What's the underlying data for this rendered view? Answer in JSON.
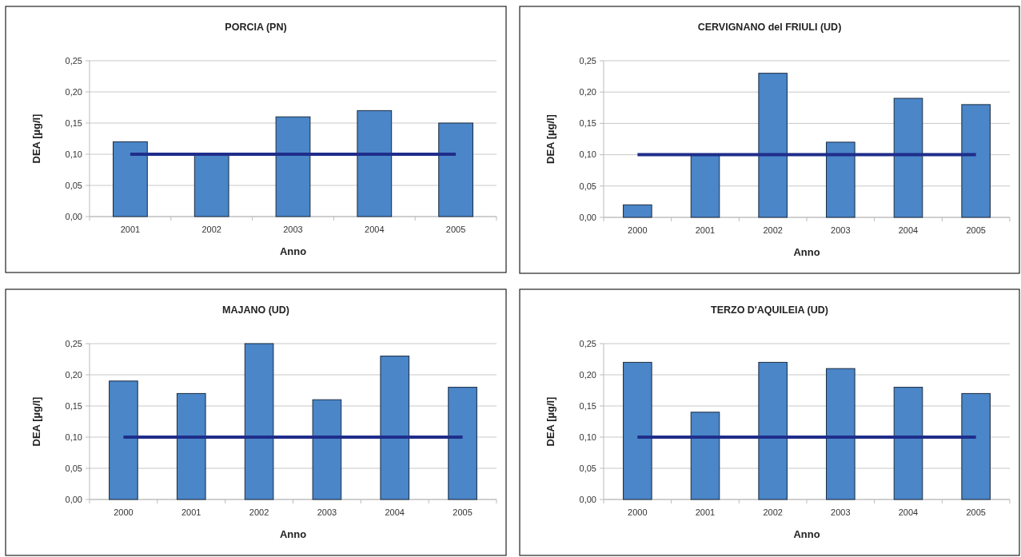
{
  "chart_data": [
    {
      "type": "bar",
      "title": "PORCIA (PN)",
      "xlabel": "Anno",
      "ylabel": "DEA [µg/l]",
      "categories": [
        "2001",
        "2002",
        "2003",
        "2004",
        "2005"
      ],
      "series": [
        {
          "color": "#4a86c8",
          "values": [
            0.12,
            0.1,
            0.16,
            0.17,
            0.15
          ]
        },
        {
          "type": "line",
          "color": "#1f2d8a",
          "values": [
            0.1,
            0.1,
            0.1,
            0.1,
            0.1
          ]
        }
      ],
      "ylim": [
        0,
        0.25
      ],
      "yticks": [
        {
          "value": 0,
          "label": "0,00"
        },
        {
          "value": 0.05,
          "label": "0,05"
        },
        {
          "value": 0.1,
          "label": "0,10"
        },
        {
          "value": 0.15,
          "label": "0,15"
        },
        {
          "value": 0.2,
          "label": "0,20"
        },
        {
          "value": 0.25,
          "label": "0,25"
        }
      ],
      "grid": "y",
      "marker": "none"
    },
    {
      "type": "bar",
      "title": "CERVIGNANO del FRIULI (UD)",
      "xlabel": "Anno",
      "ylabel": "DEA [µg/l]",
      "categories": [
        "2000",
        "2001",
        "2002",
        "2003",
        "2004",
        "2005"
      ],
      "series": [
        {
          "color": "#4a86c8",
          "values": [
            0.02,
            0.1,
            0.23,
            0.12,
            0.19,
            0.18
          ]
        },
        {
          "type": "line",
          "color": "#1f2d8a",
          "values": [
            0.1,
            0.1,
            0.1,
            0.1,
            0.1,
            0.1
          ]
        }
      ],
      "ylim": [
        0,
        0.25
      ],
      "yticks": [
        {
          "value": 0,
          "label": "0,00"
        },
        {
          "value": 0.05,
          "label": "0,05"
        },
        {
          "value": 0.1,
          "label": "0,10"
        },
        {
          "value": 0.15,
          "label": "0,15"
        },
        {
          "value": 0.2,
          "label": "0,20"
        },
        {
          "value": 0.25,
          "label": "0,25"
        }
      ],
      "grid": "y",
      "marker": "none"
    },
    {
      "type": "bar",
      "title": "MAJANO (UD)",
      "xlabel": "Anno",
      "ylabel": "DEA [µg/l]",
      "categories": [
        "2000",
        "2001",
        "2002",
        "2003",
        "2004",
        "2005"
      ],
      "series": [
        {
          "color": "#4a86c8",
          "values": [
            0.19,
            0.17,
            0.25,
            0.16,
            0.23,
            0.18
          ]
        },
        {
          "type": "line",
          "color": "#1f2d8a",
          "values": [
            0.1,
            0.1,
            0.1,
            0.1,
            0.1,
            0.1
          ]
        }
      ],
      "ylim": [
        0,
        0.25
      ],
      "yticks": [
        {
          "value": 0,
          "label": "0,00"
        },
        {
          "value": 0.05,
          "label": "0,05"
        },
        {
          "value": 0.1,
          "label": "0,10"
        },
        {
          "value": 0.15,
          "label": "0,15"
        },
        {
          "value": 0.2,
          "label": "0,20"
        },
        {
          "value": 0.25,
          "label": "0,25"
        }
      ],
      "grid": "y",
      "marker": "none"
    },
    {
      "type": "bar",
      "title": "TERZO D'AQUILEIA (UD)",
      "xlabel": "Anno",
      "ylabel": "DEA [µg/l]",
      "categories": [
        "2000",
        "2001",
        "2002",
        "2003",
        "2004",
        "2005"
      ],
      "series": [
        {
          "color": "#4a86c8",
          "values": [
            0.22,
            0.14,
            0.22,
            0.21,
            0.18,
            0.17
          ]
        },
        {
          "type": "line",
          "color": "#1f2d8a",
          "values": [
            0.1,
            0.1,
            0.1,
            0.1,
            0.1,
            0.1
          ]
        }
      ],
      "ylim": [
        0,
        0.25
      ],
      "yticks": [
        {
          "value": 0,
          "label": "0,00"
        },
        {
          "value": 0.05,
          "label": "0,05"
        },
        {
          "value": 0.1,
          "label": "0,10"
        },
        {
          "value": 0.15,
          "label": "0,15"
        },
        {
          "value": 0.2,
          "label": "0,20"
        },
        {
          "value": 0.25,
          "label": "0,25"
        }
      ],
      "grid": "y",
      "marker": "none"
    }
  ]
}
